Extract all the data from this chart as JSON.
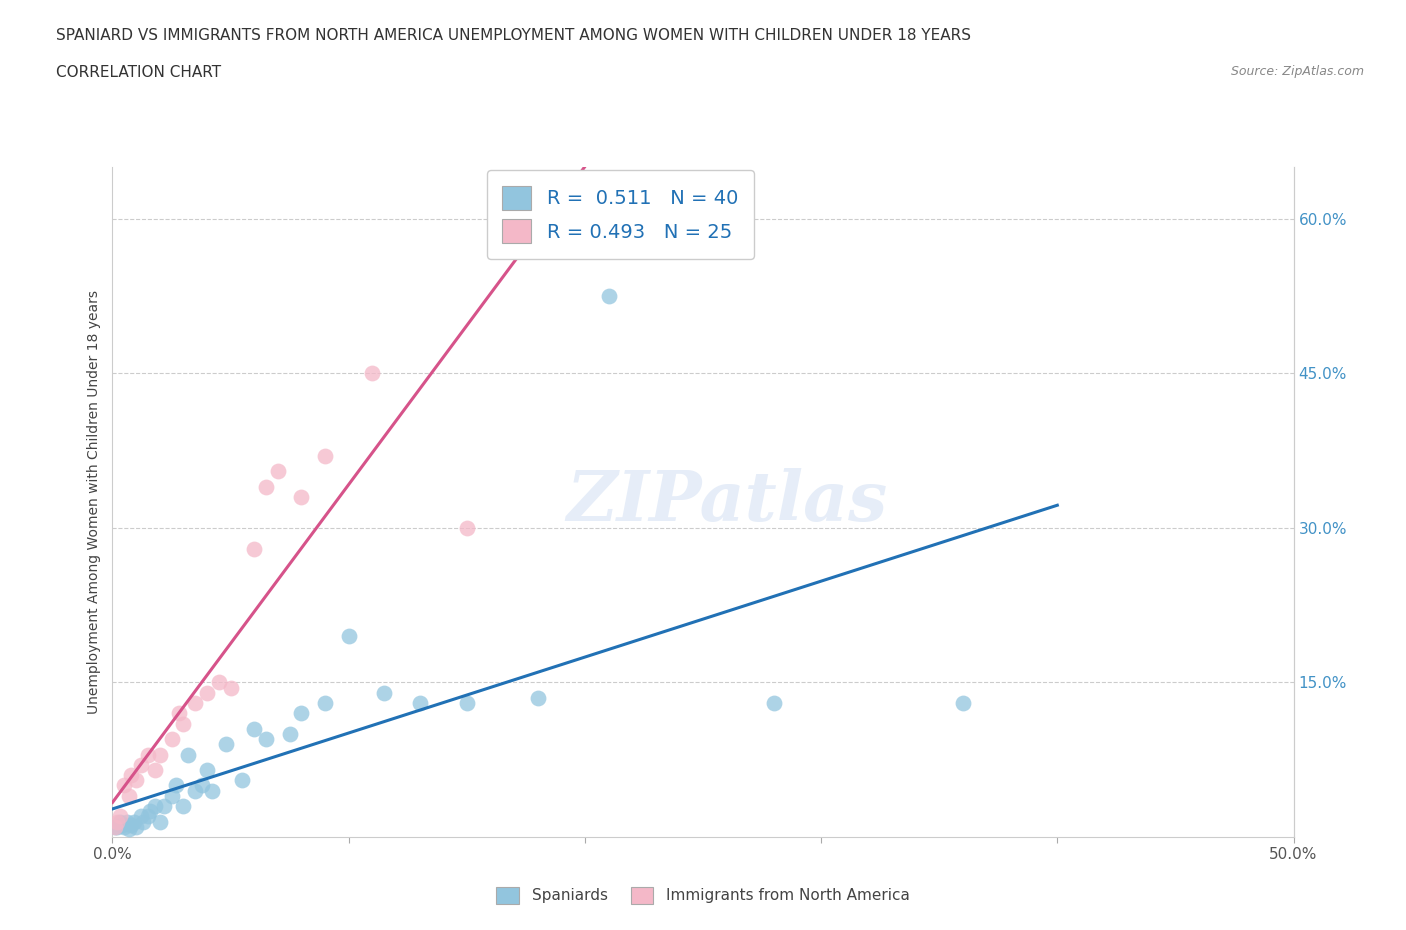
{
  "title_line1": "SPANIARD VS IMMIGRANTS FROM NORTH AMERICA UNEMPLOYMENT AMONG WOMEN WITH CHILDREN UNDER 18 YEARS",
  "title_line2": "CORRELATION CHART",
  "source": "Source: ZipAtlas.com",
  "ylabel": "Unemployment Among Women with Children Under 18 years",
  "xlim": [
    0.0,
    0.5
  ],
  "ylim": [
    0.0,
    0.65
  ],
  "watermark": "ZIPatlas",
  "blue_color": "#92c5de",
  "pink_color": "#f4b8c8",
  "blue_line_color": "#2171b5",
  "pink_line_color": "#d6538a",
  "dashed_line_color": "#cccccc",
  "R_blue": 0.511,
  "N_blue": 40,
  "R_pink": 0.493,
  "N_pink": 25,
  "spaniards_x": [
    0.001,
    0.002,
    0.003,
    0.004,
    0.005,
    0.006,
    0.007,
    0.008,
    0.009,
    0.01,
    0.012,
    0.013,
    0.015,
    0.016,
    0.018,
    0.02,
    0.022,
    0.025,
    0.027,
    0.03,
    0.032,
    0.035,
    0.038,
    0.04,
    0.042,
    0.048,
    0.055,
    0.06,
    0.065,
    0.075,
    0.08,
    0.09,
    0.1,
    0.115,
    0.13,
    0.15,
    0.18,
    0.21,
    0.28,
    0.36
  ],
  "spaniards_y": [
    0.01,
    0.01,
    0.015,
    0.012,
    0.01,
    0.015,
    0.008,
    0.012,
    0.015,
    0.01,
    0.02,
    0.015,
    0.02,
    0.025,
    0.03,
    0.015,
    0.03,
    0.04,
    0.05,
    0.03,
    0.08,
    0.045,
    0.05,
    0.065,
    0.045,
    0.09,
    0.055,
    0.105,
    0.095,
    0.1,
    0.12,
    0.13,
    0.195,
    0.14,
    0.13,
    0.13,
    0.135,
    0.525,
    0.13,
    0.13
  ],
  "immigrants_x": [
    0.001,
    0.002,
    0.003,
    0.005,
    0.007,
    0.008,
    0.01,
    0.012,
    0.015,
    0.018,
    0.02,
    0.025,
    0.028,
    0.03,
    0.035,
    0.04,
    0.045,
    0.05,
    0.06,
    0.065,
    0.07,
    0.08,
    0.09,
    0.11,
    0.15
  ],
  "immigrants_y": [
    0.01,
    0.015,
    0.02,
    0.05,
    0.04,
    0.06,
    0.055,
    0.07,
    0.08,
    0.065,
    0.08,
    0.095,
    0.12,
    0.11,
    0.13,
    0.14,
    0.15,
    0.145,
    0.28,
    0.34,
    0.355,
    0.33,
    0.37,
    0.45,
    0.3
  ]
}
